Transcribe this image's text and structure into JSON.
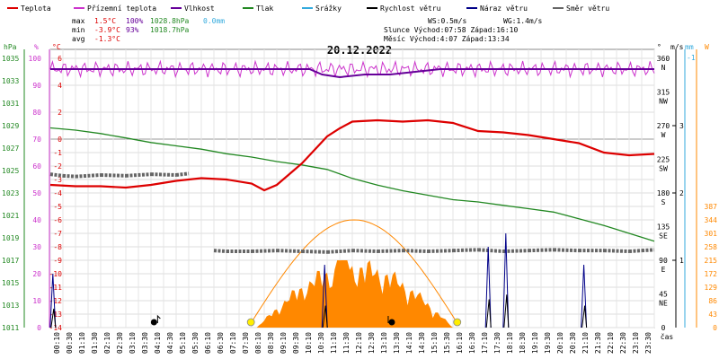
{
  "chart_data": {
    "type": "line",
    "title": "20.12.2022",
    "xlabel": "čas",
    "legend": [
      {
        "name": "Teplota",
        "color": "#dd0000"
      },
      {
        "name": "Přízemní teplota",
        "color": "#cc33cc"
      },
      {
        "name": "Vlhkost",
        "color": "#660099"
      },
      {
        "name": "Tlak",
        "color": "#228822"
      },
      {
        "name": "Srážky",
        "color": "#33aadd"
      },
      {
        "name": "Rychlost větru",
        "color": "#000000"
      },
      {
        "name": "Náraz větru",
        "color": "#000088"
      },
      {
        "name": "Směr větru",
        "color": "#666666"
      }
    ],
    "stats": {
      "max": {
        "label": "max",
        "temp": "1.5°C",
        "hum": "100%",
        "press": "1028.8hPa",
        "rain": "0.0mm"
      },
      "min": {
        "label": "min",
        "temp": "-3.9°C",
        "hum": "93%",
        "press": "1018.7hPa"
      },
      "avg": {
        "label": "avg",
        "temp": "-1.3°C"
      }
    },
    "info": {
      "ws": "WS:0.5m/s",
      "wg": "WG:1.4m/s",
      "sun": "Slunce Východ:07:58  Západ:16:10",
      "moon": "Měsíc  Východ:4:07   Západ:13:34"
    },
    "axes": {
      "hpa": {
        "label": "hPa",
        "ticks": [
          1035,
          1033,
          1031,
          1029,
          1027,
          1025,
          1023,
          1021,
          1019,
          1017,
          1015,
          1013,
          1011
        ]
      },
      "pct": {
        "label": "%",
        "ticks": [
          100,
          90,
          80,
          70,
          60,
          50,
          40,
          30,
          20,
          10,
          0
        ]
      },
      "celsius": {
        "label": "°C",
        "ticks": [
          6,
          4,
          2,
          0,
          -1,
          -2,
          -3,
          -4,
          -5,
          -6,
          -7,
          -8,
          -9,
          -10,
          -11,
          -12,
          -13,
          -14
        ]
      },
      "degrees": {
        "label": "°",
        "ticks": [
          {
            "v": "360",
            "d": "N"
          },
          {
            "v": "315",
            "d": "NW"
          },
          {
            "v": "270",
            "d": "W"
          },
          {
            "v": "225",
            "d": "SW"
          },
          {
            "v": "180",
            "d": "S"
          },
          {
            "v": "135",
            "d": "SE"
          },
          {
            "v": "90",
            "d": "E"
          },
          {
            "v": "45",
            "d": "NE"
          },
          {
            "v": "0",
            "d": ""
          }
        ]
      },
      "ms": {
        "label": "m/s",
        "ticks": [
          3,
          2,
          1
        ]
      },
      "mm": {
        "label": "mm",
        "ticks": [
          "-1"
        ]
      },
      "wm2": {
        "label": "W",
        "ticks": [
          387,
          344,
          301,
          258,
          215,
          172,
          129,
          86,
          43,
          0
        ]
      }
    },
    "x_ticks": [
      "00:10",
      "00:30",
      "01:10",
      "01:30",
      "02:10",
      "02:30",
      "03:10",
      "03:30",
      "04:10",
      "04:30",
      "05:10",
      "05:30",
      "06:10",
      "06:30",
      "07:10",
      "07:30",
      "08:10",
      "08:30",
      "09:10",
      "09:30",
      "10:10",
      "10:30",
      "11:10",
      "11:30",
      "12:10",
      "12:30",
      "13:10",
      "13:30",
      "14:10",
      "14:30",
      "15:10",
      "15:30",
      "16:10",
      "16:30",
      "17:10",
      "17:30",
      "18:10",
      "18:30",
      "19:10",
      "19:30",
      "20:10",
      "20:30",
      "21:10",
      "21:30",
      "22:10",
      "22:30",
      "23:10",
      "23:30"
    ],
    "series": [
      {
        "name": "Teplota",
        "unit": "°C",
        "x": [
          0,
          1,
          2,
          3,
          4,
          5,
          6,
          7,
          8,
          8.5,
          9,
          9.5,
          10,
          10.5,
          11,
          11.5,
          12,
          13,
          14,
          15,
          16,
          17,
          18,
          19,
          20,
          21,
          22,
          23,
          24
        ],
        "values": [
          -3.4,
          -3.5,
          -3.5,
          -3.6,
          -3.4,
          -3.1,
          -2.9,
          -3.0,
          -3.3,
          -3.8,
          -3.4,
          -2.6,
          -1.8,
          -0.8,
          0.2,
          0.8,
          1.3,
          1.4,
          1.3,
          1.4,
          1.2,
          0.6,
          0.5,
          0.3,
          0.0,
          -0.3,
          -1.0,
          -1.2,
          -1.1
        ]
      },
      {
        "name": "Tlak",
        "unit": "hPa",
        "x": [
          0,
          1,
          2,
          3,
          4,
          5,
          6,
          7,
          8,
          9,
          10,
          11,
          12,
          13,
          14,
          15,
          16,
          17,
          18,
          19,
          20,
          21,
          22,
          23,
          24
        ],
        "values": [
          1028.8,
          1028.6,
          1028.3,
          1027.9,
          1027.5,
          1027.2,
          1026.9,
          1026.5,
          1026.2,
          1025.8,
          1025.5,
          1025.1,
          1024.3,
          1023.7,
          1023.2,
          1022.8,
          1022.4,
          1022.2,
          1021.9,
          1021.6,
          1021.3,
          1020.7,
          1020.1,
          1019.4,
          1018.7
        ]
      },
      {
        "name": "Vlhkost",
        "unit": "%",
        "x": [
          0,
          10.3,
          10.8,
          11.5,
          12.5,
          13.5,
          14.5,
          15.5,
          16.5,
          17,
          24
        ],
        "values": [
          96,
          96,
          94,
          93,
          94,
          94,
          95,
          96,
          96,
          96,
          96
        ]
      },
      {
        "name": "Směr větru",
        "unit": "°",
        "x": [
          0,
          0.5,
          1,
          2,
          3,
          4,
          5,
          5.5,
          6.5,
          7,
          8,
          9,
          10,
          11,
          12,
          13,
          14,
          15,
          16,
          17,
          18,
          19,
          20,
          21,
          22,
          23,
          23.5,
          24
        ],
        "values": [
          205,
          203,
          202,
          204,
          203,
          205,
          204,
          206,
          103,
          102,
          102,
          103,
          102,
          101,
          103,
          102,
          103,
          102,
          103,
          104,
          102,
          103,
          104,
          103,
          103,
          102,
          103,
          104
        ]
      }
    ],
    "precip_mm": {
      "max": "0.0mm"
    },
    "markers": [
      {
        "label": "Slunce Východ",
        "time": "07:58"
      },
      {
        "label": "Slunce Západ",
        "time": "16:10"
      }
    ]
  }
}
